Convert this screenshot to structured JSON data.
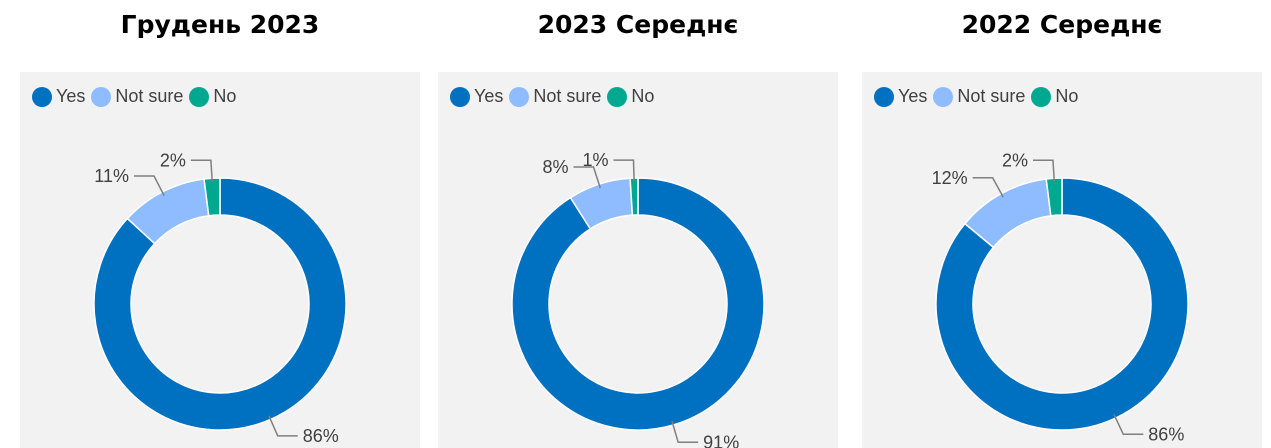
{
  "legend": [
    {
      "label": "Yes",
      "color": "#0070c0"
    },
    {
      "label": "Not sure",
      "color": "#8fbcff"
    },
    {
      "label": "No",
      "color": "#00a88f"
    }
  ],
  "chart_data": [
    {
      "type": "pie",
      "title": "Грудень 2023",
      "categories": [
        "Yes",
        "Not sure",
        "No"
      ],
      "values": [
        86,
        11,
        2
      ],
      "labels": [
        "86%",
        "11%",
        "2%"
      ],
      "donut": true,
      "legend": "top-left"
    },
    {
      "type": "pie",
      "title": "2023 Середнє",
      "categories": [
        "Yes",
        "Not sure",
        "No"
      ],
      "values": [
        91,
        8,
        1
      ],
      "labels": [
        "91%",
        "8%",
        "1%"
      ],
      "donut": true,
      "legend": "top-left"
    },
    {
      "type": "pie",
      "title": "2022 Середнє",
      "categories": [
        "Yes",
        "Not sure",
        "No"
      ],
      "values": [
        86,
        12,
        2
      ],
      "labels": [
        "86%",
        "12%",
        "2%"
      ],
      "donut": true,
      "legend": "top-left"
    }
  ]
}
